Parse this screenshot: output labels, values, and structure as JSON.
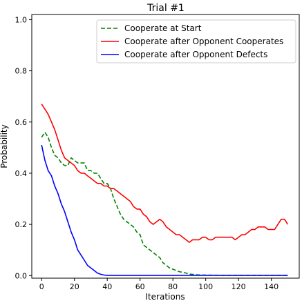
{
  "chart_data": {
    "type": "line",
    "title": "Trial #1",
    "xlabel": "Iterations",
    "ylabel": "Probability",
    "xlim": [
      -6,
      157
    ],
    "ylim": [
      -0.01,
      1.02
    ],
    "xticks": [
      0,
      20,
      40,
      60,
      80,
      100,
      120,
      140
    ],
    "yticks": [
      0.0,
      0.2,
      0.4,
      0.6,
      0.8,
      1.0
    ],
    "xtick_labels": [
      "0",
      "20",
      "40",
      "60",
      "80",
      "100",
      "120",
      "140"
    ],
    "ytick_labels": [
      "0.0",
      "0.2",
      "0.4",
      "0.6",
      "0.8",
      "1.0"
    ],
    "grid": false,
    "legend_position": "top-right",
    "series": [
      {
        "name": "Cooperate at Start",
        "color": "#008000",
        "dash": "dashed",
        "x": [
          0,
          2,
          4,
          6,
          8,
          10,
          12,
          14,
          16,
          18,
          20,
          22,
          24,
          26,
          28,
          30,
          32,
          34,
          36,
          38,
          40,
          42,
          44,
          46,
          48,
          50,
          52,
          54,
          56,
          58,
          60,
          62,
          64,
          66,
          68,
          70,
          72,
          74,
          76,
          78,
          80,
          82,
          84,
          86,
          88,
          90,
          95,
          100,
          110,
          120,
          130,
          140,
          150
        ],
        "values": [
          0.54,
          0.56,
          0.54,
          0.5,
          0.47,
          0.46,
          0.44,
          0.43,
          0.43,
          0.46,
          0.45,
          0.44,
          0.44,
          0.44,
          0.41,
          0.41,
          0.4,
          0.4,
          0.38,
          0.36,
          0.36,
          0.34,
          0.3,
          0.27,
          0.24,
          0.22,
          0.21,
          0.2,
          0.19,
          0.17,
          0.16,
          0.12,
          0.11,
          0.1,
          0.09,
          0.08,
          0.07,
          0.05,
          0.04,
          0.03,
          0.025,
          0.02,
          0.015,
          0.013,
          0.01,
          0.006,
          0.003,
          0.002,
          0.001,
          0.001,
          0.001,
          0.001,
          0.001
        ]
      },
      {
        "name": "Cooperate after Opponent Cooperates",
        "color": "#ff0000",
        "dash": "solid",
        "x": [
          0,
          2,
          4,
          6,
          8,
          10,
          12,
          14,
          16,
          18,
          20,
          22,
          24,
          26,
          28,
          30,
          32,
          34,
          36,
          38,
          40,
          42,
          44,
          46,
          48,
          50,
          52,
          54,
          56,
          58,
          60,
          62,
          64,
          66,
          68,
          70,
          72,
          74,
          76,
          78,
          80,
          82,
          84,
          86,
          88,
          90,
          92,
          94,
          96,
          98,
          100,
          102,
          104,
          106,
          108,
          110,
          112,
          114,
          116,
          118,
          120,
          122,
          124,
          126,
          128,
          130,
          132,
          134,
          136,
          138,
          140,
          142,
          144,
          146,
          148,
          150
        ],
        "values": [
          0.67,
          0.65,
          0.63,
          0.6,
          0.57,
          0.53,
          0.49,
          0.46,
          0.45,
          0.44,
          0.43,
          0.41,
          0.4,
          0.4,
          0.39,
          0.38,
          0.37,
          0.36,
          0.36,
          0.35,
          0.35,
          0.34,
          0.34,
          0.33,
          0.32,
          0.31,
          0.3,
          0.29,
          0.27,
          0.26,
          0.26,
          0.24,
          0.23,
          0.21,
          0.2,
          0.21,
          0.22,
          0.21,
          0.19,
          0.18,
          0.17,
          0.16,
          0.16,
          0.15,
          0.14,
          0.13,
          0.14,
          0.14,
          0.14,
          0.15,
          0.15,
          0.14,
          0.14,
          0.15,
          0.15,
          0.15,
          0.15,
          0.15,
          0.15,
          0.14,
          0.15,
          0.16,
          0.16,
          0.17,
          0.18,
          0.18,
          0.19,
          0.19,
          0.19,
          0.18,
          0.18,
          0.18,
          0.2,
          0.22,
          0.22,
          0.2
        ]
      },
      {
        "name": "Cooperate after Opponent Defects",
        "color": "#0000ff",
        "dash": "solid",
        "x": [
          0,
          2,
          4,
          6,
          8,
          10,
          12,
          14,
          16,
          18,
          20,
          22,
          24,
          26,
          28,
          30,
          32,
          34,
          36,
          38,
          40,
          45,
          50,
          60,
          70,
          80,
          90,
          100,
          110,
          120,
          130,
          140,
          150
        ],
        "values": [
          0.51,
          0.45,
          0.41,
          0.39,
          0.35,
          0.32,
          0.28,
          0.25,
          0.21,
          0.17,
          0.14,
          0.1,
          0.08,
          0.06,
          0.04,
          0.03,
          0.02,
          0.01,
          0.005,
          0.002,
          0.001,
          0.001,
          0.001,
          0.001,
          0.001,
          0.001,
          0.001,
          0.001,
          0.001,
          0.001,
          0.001,
          0.001,
          0.001
        ]
      }
    ]
  }
}
